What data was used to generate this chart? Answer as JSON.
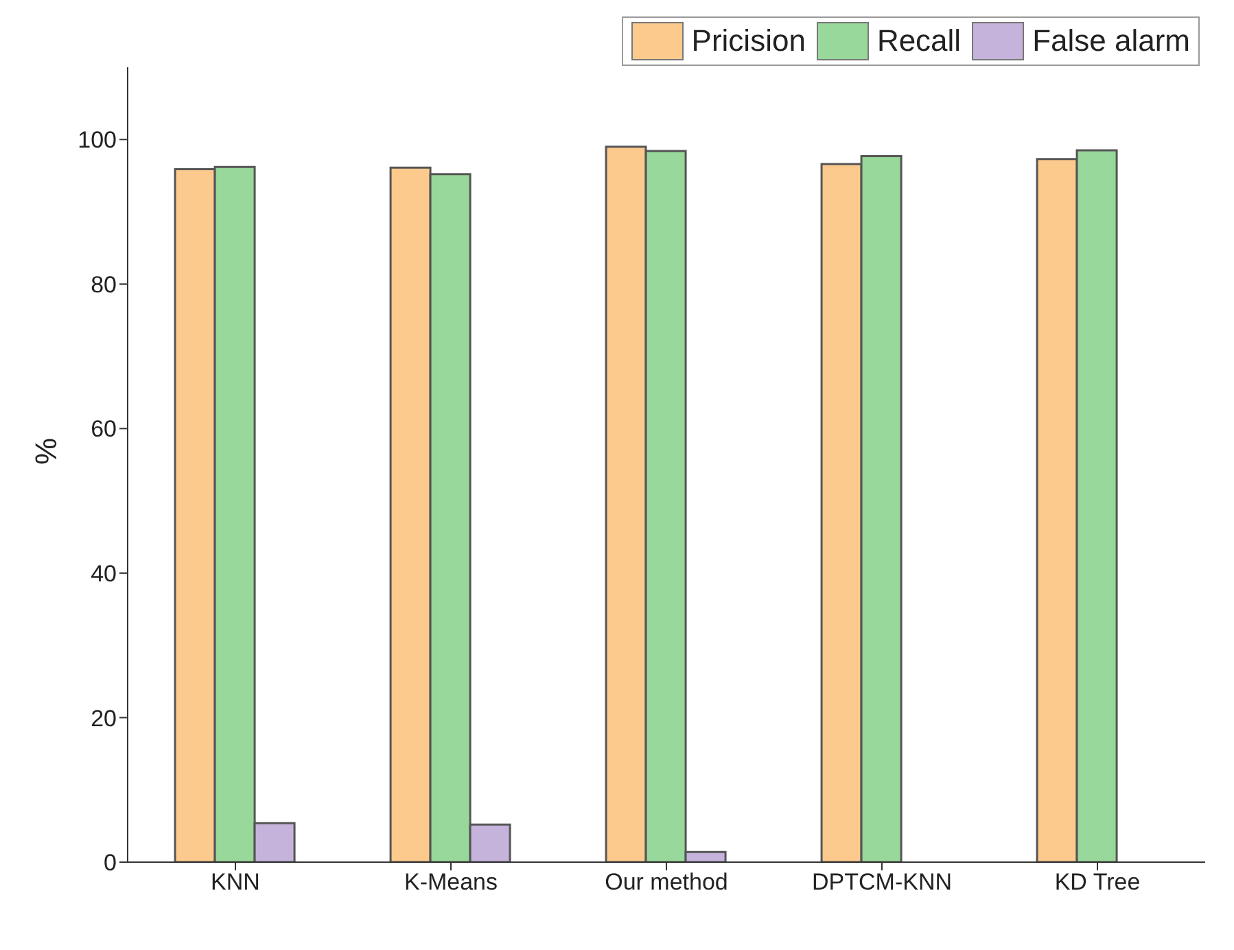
{
  "chart_data": {
    "type": "bar",
    "ylabel": "%",
    "categories": [
      "KNN",
      "K-Means",
      "Our method",
      "DPTCM-KNN",
      "KD Tree"
    ],
    "series": [
      {
        "name": "Pricision",
        "color": "#fdca8d",
        "values": [
          95.9,
          96.1,
          99.0,
          96.6,
          97.3
        ]
      },
      {
        "name": "Recall",
        "color": "#98d89a",
        "values": [
          96.2,
          95.2,
          98.4,
          97.7,
          98.5
        ]
      },
      {
        "name": "False alarm",
        "color": "#c6b3dc",
        "values": [
          5.4,
          5.2,
          1.4,
          0,
          0
        ]
      }
    ],
    "ylim": [
      0,
      110
    ],
    "yticks": [
      0,
      20,
      40,
      60,
      80,
      100
    ],
    "grid": false,
    "legend": "top right"
  }
}
